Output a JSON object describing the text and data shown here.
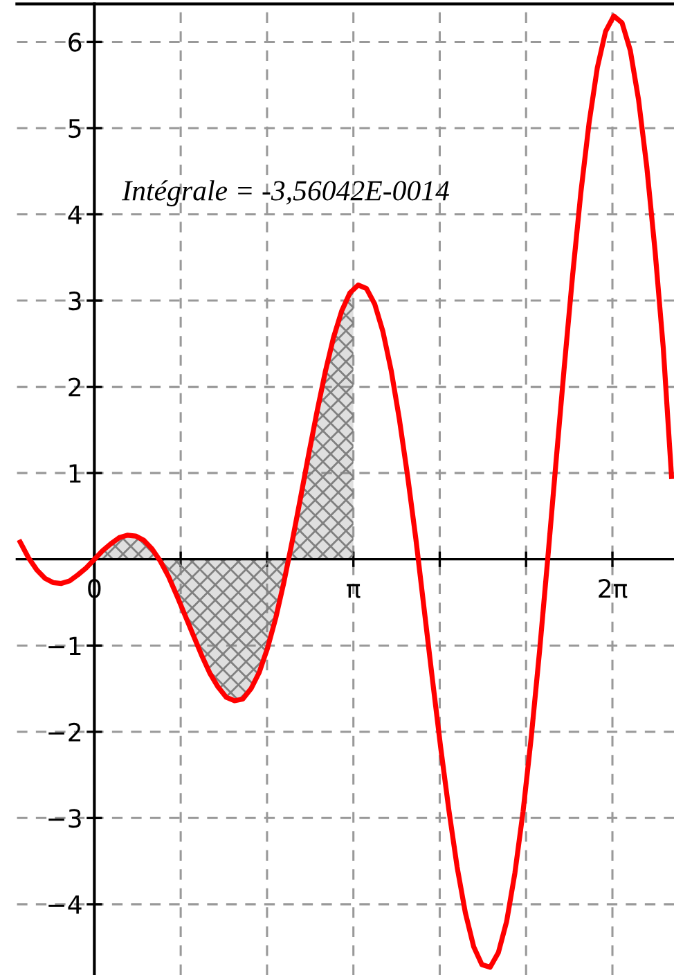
{
  "chart_data": {
    "type": "line",
    "xlim": [
      -0.94,
      7.03
    ],
    "ylim": [
      -4.82,
      6.44
    ],
    "xticks": [
      {
        "value": 0,
        "label": "0"
      },
      {
        "value": 1.0472,
        "label": null
      },
      {
        "value": 2.0944,
        "label": null
      },
      {
        "value": 3.14159,
        "label": "π"
      },
      {
        "value": 4.18879,
        "label": null
      },
      {
        "value": 5.23599,
        "label": null
      },
      {
        "value": 6.28319,
        "label": "2π"
      }
    ],
    "yticks": [
      {
        "value": -4,
        "label": "−4"
      },
      {
        "value": -3,
        "label": "−3"
      },
      {
        "value": -2,
        "label": "−2"
      },
      {
        "value": -1,
        "label": "−1"
      },
      1,
      2,
      3,
      4,
      5,
      6
    ],
    "grid": true,
    "line_style": "solid",
    "marker": "none",
    "annotations": [
      "Intégrale = -3,56042E-0014"
    ],
    "series": [
      {
        "color": "#ff0000",
        "x": [
          -0.9,
          -0.8,
          -0.7,
          -0.6,
          -0.5,
          -0.4,
          -0.3,
          -0.2,
          -0.1,
          0,
          0.1,
          0.2,
          0.3,
          0.4,
          0.5,
          0.6,
          0.7,
          0.8,
          0.9,
          1.0,
          1.1,
          1.2,
          1.3,
          1.4,
          1.5,
          1.6,
          1.7,
          1.8,
          1.9,
          2.0,
          2.1,
          2.2,
          2.3,
          2.4,
          2.5,
          2.6,
          2.7,
          2.8,
          2.9,
          3.0,
          3.1,
          3.2,
          3.3,
          3.4,
          3.5,
          3.6,
          3.7,
          3.8,
          3.9,
          4.0,
          4.1,
          4.2,
          4.3,
          4.4,
          4.5,
          4.6,
          4.7,
          4.8,
          4.9,
          5.0,
          5.1,
          5.2,
          5.3,
          5.4,
          5.5,
          5.6,
          5.7,
          5.8,
          5.9,
          6.0,
          6.1,
          6.2,
          6.3,
          6.4,
          6.5,
          6.6,
          6.7,
          6.8,
          6.9,
          7.0
        ],
        "values": [
          0.2,
          0.02,
          -0.12,
          -0.22,
          -0.27,
          -0.28,
          -0.25,
          -0.18,
          -0.1,
          0,
          0.1,
          0.18,
          0.25,
          0.28,
          0.27,
          0.22,
          0.12,
          -0.02,
          -0.2,
          -0.42,
          -0.65,
          -0.88,
          -1.11,
          -1.32,
          -1.48,
          -1.6,
          -1.64,
          -1.62,
          -1.5,
          -1.31,
          -1.03,
          -0.68,
          -0.26,
          0.21,
          0.71,
          1.22,
          1.71,
          2.17,
          2.57,
          2.88,
          3.09,
          3.18,
          3.14,
          2.96,
          2.64,
          2.19,
          1.62,
          0.96,
          0.23,
          -0.58,
          -1.39,
          -2.18,
          -2.91,
          -3.57,
          -4.1,
          -4.49,
          -4.7,
          -4.73,
          -4.56,
          -4.2,
          -3.64,
          -2.92,
          -2.05,
          -1.06,
          0.02,
          1.14,
          2.24,
          3.29,
          4.25,
          5.06,
          5.7,
          6.12,
          6.3,
          6.22,
          5.9,
          5.33,
          4.55,
          3.58,
          2.45,
          0.96
        ]
      },
      {
        "type": "area",
        "color": "#808080",
        "x": [
          0,
          0.1,
          0.2,
          0.3,
          0.4,
          0.5,
          0.6,
          0.7,
          0.8,
          0.9,
          1.0,
          1.1,
          1.2,
          1.3,
          1.4,
          1.5,
          1.6,
          1.7,
          1.8,
          1.9,
          2.0,
          2.1,
          2.2,
          2.3,
          2.4,
          2.5,
          2.6,
          2.7,
          2.8,
          2.9,
          3.0,
          3.1,
          3.14159
        ],
        "values": [
          0,
          0.1,
          0.18,
          0.25,
          0.28,
          0.27,
          0.22,
          0.12,
          -0.02,
          -0.2,
          -0.42,
          -0.65,
          -0.88,
          -1.11,
          -1.32,
          -1.48,
          -1.6,
          -1.64,
          -1.62,
          -1.5,
          -1.31,
          -1.03,
          -0.68,
          -0.26,
          0.21,
          0.71,
          1.22,
          1.71,
          2.17,
          2.57,
          2.88,
          3.09,
          3.14
        ]
      }
    ]
  }
}
